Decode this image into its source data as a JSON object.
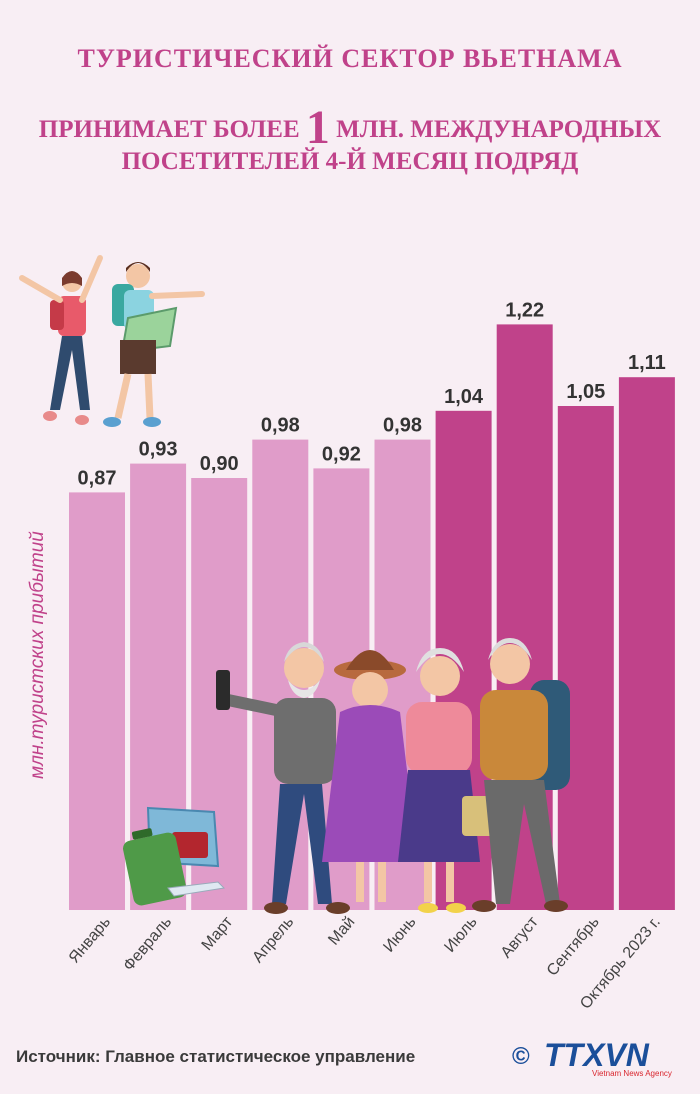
{
  "header": {
    "title_line1": "ТУРИСТИЧЕСКИЙ СЕКТОР ВЬЕТНАМА",
    "title_line2_pre": "ПРИНИМАЕТ БОЛЕЕ",
    "title_line2_num": "1",
    "title_line2_post": "МЛН. МЕЖДУНАРОДНЫХ",
    "title_line3": "ПОСЕТИТЕЛЕЙ 4-Й МЕСЯЦ ПОДРЯД"
  },
  "footer": {
    "source": "Источник: Главное статистическое управление",
    "logo_text": "TTXVN",
    "logo_sub": "Vietnam News Agency",
    "copyright": "©"
  },
  "colors": {
    "title": "#c0428a",
    "bar_light": "#e09cc9",
    "bar_dark": "#c0428a",
    "background": "#f8eef4"
  },
  "chart_data": {
    "type": "bar",
    "ylabel": "млн.туристских прибытий",
    "categories": [
      "Январь",
      "Февраль",
      "Март",
      "Апрель",
      "Май",
      "Июнь",
      "Июль",
      "Август",
      "Сентябрь",
      "Октябрь 2023 г."
    ],
    "values": [
      0.87,
      0.93,
      0.9,
      0.98,
      0.92,
      0.98,
      1.04,
      1.22,
      1.05,
      1.11
    ],
    "value_labels": [
      "0,87",
      "0,93",
      "0,90",
      "0,98",
      "0,92",
      "0,98",
      "1,04",
      "1,22",
      "1,05",
      "1,11"
    ],
    "highlight_threshold": 1.0,
    "grid": false,
    "legend": "none"
  }
}
